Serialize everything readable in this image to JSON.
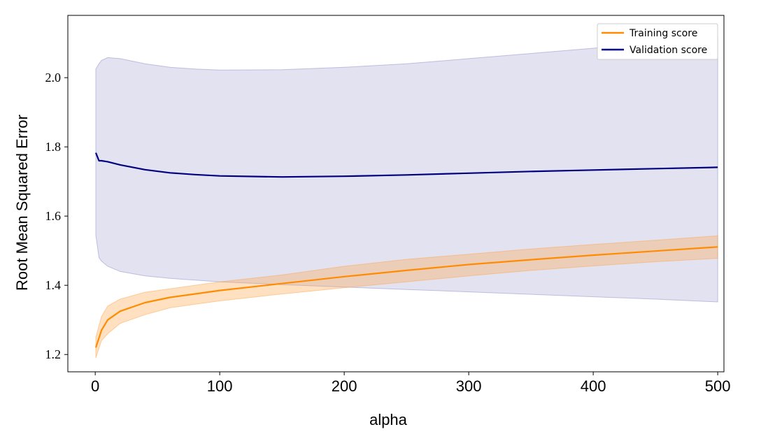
{
  "chart_data": {
    "type": "line",
    "title": "",
    "xlabel": "alpha",
    "ylabel": "Root Mean Squared Error",
    "xlim": [
      -22,
      505
    ],
    "ylim": [
      1.15,
      2.18
    ],
    "xticks": [
      0,
      100,
      200,
      300,
      400,
      500
    ],
    "xtick_labels": [
      "0",
      "100",
      "200",
      "300",
      "400",
      "500"
    ],
    "yticks": [
      1.2,
      1.4,
      1.6,
      1.8,
      2.0
    ],
    "ytick_labels": [
      "1.2",
      "1.4",
      "1.6",
      "1.8",
      "2.0"
    ],
    "grid": false,
    "legend_position": "top-right",
    "series": [
      {
        "name": "Training score",
        "color": "#ff8c00",
        "band_color": "#ffa64d",
        "x": [
          0.5,
          5,
          10,
          20,
          40,
          60,
          80,
          100,
          150,
          200,
          250,
          300,
          350,
          400,
          450,
          500
        ],
        "values": [
          1.22,
          1.27,
          1.3,
          1.325,
          1.35,
          1.365,
          1.375,
          1.385,
          1.405,
          1.425,
          1.443,
          1.46,
          1.474,
          1.487,
          1.499,
          1.511
        ],
        "band_upper": [
          1.25,
          1.31,
          1.34,
          1.36,
          1.38,
          1.39,
          1.4,
          1.41,
          1.43,
          1.455,
          1.475,
          1.49,
          1.505,
          1.518,
          1.53,
          1.543
        ],
        "band_lower": [
          1.19,
          1.24,
          1.26,
          1.29,
          1.315,
          1.335,
          1.345,
          1.355,
          1.375,
          1.393,
          1.41,
          1.427,
          1.443,
          1.456,
          1.468,
          1.478
        ]
      },
      {
        "name": "Validation score",
        "color": "#000080",
        "band_color": "#8c8cc8",
        "x": [
          0.5,
          3,
          5,
          10,
          20,
          40,
          60,
          80,
          100,
          150,
          200,
          250,
          300,
          350,
          400,
          450,
          500
        ],
        "values": [
          1.783,
          1.76,
          1.76,
          1.757,
          1.748,
          1.734,
          1.725,
          1.72,
          1.716,
          1.713,
          1.715,
          1.719,
          1.724,
          1.729,
          1.733,
          1.737,
          1.741
        ],
        "band_upper": [
          2.025,
          2.04,
          2.05,
          2.058,
          2.055,
          2.04,
          2.03,
          2.025,
          2.022,
          2.023,
          2.03,
          2.04,
          2.055,
          2.07,
          2.085,
          2.1,
          2.115
        ],
        "band_lower": [
          1.545,
          1.48,
          1.47,
          1.455,
          1.44,
          1.427,
          1.42,
          1.415,
          1.41,
          1.402,
          1.395,
          1.388,
          1.381,
          1.374,
          1.367,
          1.36,
          1.352
        ]
      }
    ]
  }
}
